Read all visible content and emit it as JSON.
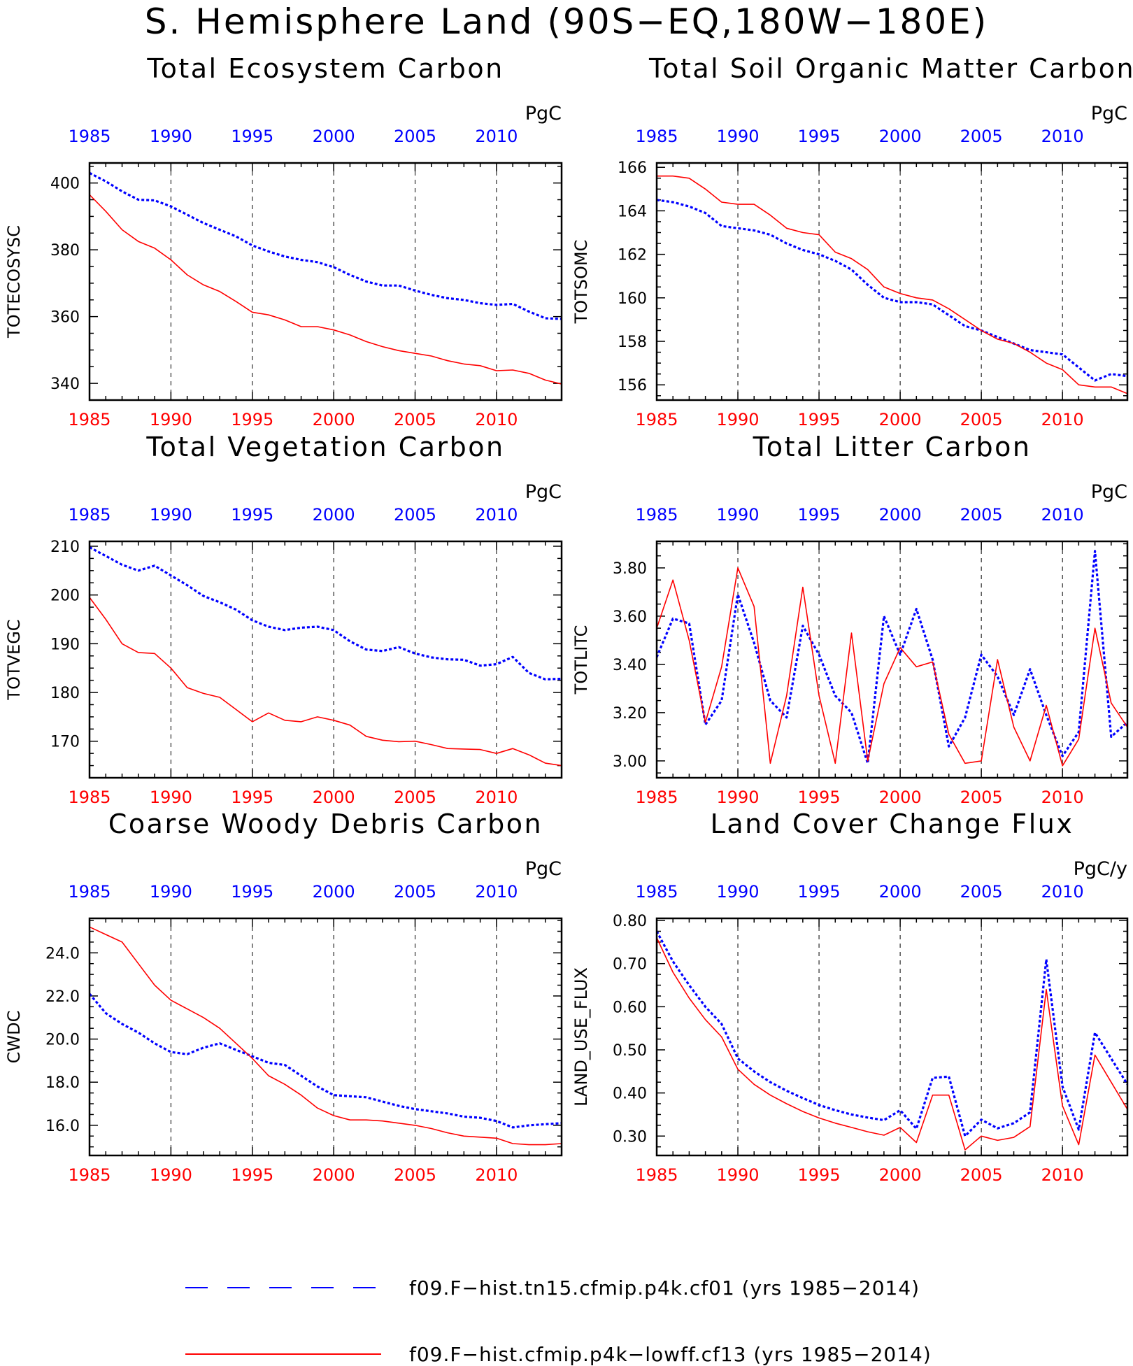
{
  "figure": {
    "title": "S. Hemisphere Land (90S−EQ,180W−180E)"
  },
  "legend": [
    {
      "label": "f09.F−hist.tn15.cfmip.p4k.cf01 (yrs 1985−2014)",
      "color": "#0000ff",
      "style": "dashed"
    },
    {
      "label": "f09.F−hist.cfmip.p4k−lowff.cf13 (yrs 1985−2014)",
      "color": "#ff0000",
      "style": "solid"
    }
  ],
  "colors": {
    "blue_series": "#0000ff",
    "red_series": "#ff0000",
    "top_axis": "#0000ff",
    "bottom_axis": "#ff0000"
  },
  "chart_data": [
    {
      "type": "line",
      "title": "Total Ecosystem Carbon",
      "units": "PgC",
      "ylabel": "TOTECOSYSC",
      "xlim": [
        1985,
        2014
      ],
      "ylim": [
        335,
        406
      ],
      "yticks": [
        340,
        360,
        380,
        400
      ],
      "ytick_labels": [
        "340",
        "360",
        "380",
        "400"
      ],
      "xticks": [
        1985,
        1990,
        1995,
        2000,
        2005,
        2010
      ],
      "x_start": 1985,
      "series": [
        {
          "values": [
            403,
            400.5,
            397.5,
            395,
            394.8,
            393,
            390.5,
            388,
            386,
            384,
            381.3,
            379.5,
            378,
            377,
            376.3,
            374.8,
            372.5,
            370.5,
            369.3,
            369.3,
            367.8,
            366.5,
            365.5,
            365,
            364,
            363.5,
            363.8,
            361.5,
            359.5,
            359.3
          ]
        },
        {
          "values": [
            396.5,
            391.5,
            386,
            382.5,
            380.5,
            377,
            372.5,
            369.5,
            367.5,
            364.5,
            361.3,
            360.5,
            359,
            357,
            357,
            356,
            354.5,
            352.5,
            351,
            349.8,
            349,
            348.2,
            346.8,
            345.8,
            345.3,
            343.8,
            344,
            343,
            341,
            339.8
          ]
        }
      ]
    },
    {
      "type": "line",
      "title": "Total Soil Organic Matter Carbon",
      "units": "PgC",
      "ylabel": "TOTSOMC",
      "xlim": [
        1985,
        2014
      ],
      "ylim": [
        155.3,
        166.2
      ],
      "yticks": [
        156,
        158,
        160,
        162,
        164,
        166
      ],
      "ytick_labels": [
        "156",
        "158",
        "160",
        "162",
        "164",
        "166"
      ],
      "xticks": [
        1985,
        1990,
        1995,
        2000,
        2005,
        2010
      ],
      "x_start": 1985,
      "series": [
        {
          "values": [
            164.5,
            164.4,
            164.2,
            163.9,
            163.3,
            163.2,
            163.1,
            162.9,
            162.5,
            162.2,
            162,
            161.7,
            161.3,
            160.6,
            160,
            159.8,
            159.8,
            159.7,
            159.2,
            158.7,
            158.5,
            158.2,
            157.9,
            157.6,
            157.5,
            157.4,
            156.8,
            156.2,
            156.5,
            156.4
          ]
        },
        {
          "values": [
            165.6,
            165.6,
            165.5,
            165,
            164.4,
            164.3,
            164.3,
            163.8,
            163.2,
            163,
            162.9,
            162.1,
            161.8,
            161.3,
            160.5,
            160.2,
            160,
            159.9,
            159.5,
            159,
            158.5,
            158.1,
            157.9,
            157.5,
            157,
            156.7,
            156,
            155.9,
            155.9,
            155.6
          ]
        }
      ]
    },
    {
      "type": "line",
      "title": "Total Vegetation Carbon",
      "units": "PgC",
      "ylabel": "TOTVEGC",
      "xlim": [
        1985,
        2014
      ],
      "ylim": [
        162.5,
        211
      ],
      "yticks": [
        170,
        180,
        190,
        200,
        210
      ],
      "ytick_labels": [
        "170",
        "180",
        "190",
        "200",
        "210"
      ],
      "xticks": [
        1985,
        1990,
        1995,
        2000,
        2005,
        2010
      ],
      "x_start": 1985,
      "series": [
        {
          "values": [
            209.8,
            208,
            206.2,
            205,
            206,
            204,
            202,
            199.8,
            198.5,
            197,
            194.8,
            193.5,
            192.8,
            193.3,
            193.5,
            192.8,
            190.5,
            188.8,
            188.5,
            189.3,
            188,
            187.2,
            186.8,
            186.7,
            185.5,
            185.8,
            187.3,
            184,
            182.7,
            182.8
          ]
        },
        {
          "values": [
            199.5,
            195,
            190,
            188.2,
            188,
            185,
            181,
            179.8,
            179,
            176.5,
            174,
            175.8,
            174.3,
            174,
            175,
            174.3,
            173.3,
            171,
            170.2,
            169.9,
            170,
            169.3,
            168.5,
            168.4,
            168.3,
            167.5,
            168.5,
            167.2,
            165.5,
            165
          ]
        }
      ]
    },
    {
      "type": "line",
      "title": "Total Litter Carbon",
      "units": "PgC",
      "ylabel": "TOTLITC",
      "xlim": [
        1985,
        2014
      ],
      "ylim": [
        2.93,
        3.91
      ],
      "yticks": [
        3.0,
        3.2,
        3.4,
        3.6,
        3.8
      ],
      "ytick_labels": [
        "3.00",
        "3.20",
        "3.40",
        "3.60",
        "3.80"
      ],
      "xticks": [
        1985,
        1990,
        1995,
        2000,
        2005,
        2010
      ],
      "x_start": 1985,
      "series": [
        {
          "values": [
            3.43,
            3.59,
            3.57,
            3.15,
            3.25,
            3.69,
            3.49,
            3.25,
            3.18,
            3.56,
            3.44,
            3.27,
            3.2,
            2.99,
            3.6,
            3.44,
            3.63,
            3.42,
            3.06,
            3.18,
            3.44,
            3.35,
            3.19,
            3.38,
            3.19,
            3.02,
            3.12,
            3.87,
            3.1,
            3.16
          ]
        },
        {
          "values": [
            3.55,
            3.75,
            3.5,
            3.16,
            3.39,
            3.8,
            3.64,
            2.99,
            3.27,
            3.72,
            3.27,
            2.99,
            3.53,
            3.0,
            3.32,
            3.47,
            3.39,
            3.41,
            3.11,
            2.99,
            3.0,
            3.42,
            3.14,
            3.0,
            3.23,
            2.98,
            3.09,
            3.55,
            3.24,
            3.14
          ]
        }
      ]
    },
    {
      "type": "line",
      "title": "Coarse Woody Debris Carbon",
      "units": "PgC",
      "ylabel": "CWDC",
      "xlim": [
        1985,
        2014
      ],
      "ylim": [
        14.6,
        25.6
      ],
      "yticks": [
        16,
        18,
        20,
        22,
        24
      ],
      "ytick_labels": [
        "16.0",
        "18.0",
        "20.0",
        "22.0",
        "24.0"
      ],
      "xticks": [
        1985,
        1990,
        1995,
        2000,
        2005,
        2010
      ],
      "x_start": 1985,
      "series": [
        {
          "values": [
            22.1,
            21.2,
            20.7,
            20.3,
            19.8,
            19.4,
            19.3,
            19.6,
            19.8,
            19.5,
            19.2,
            18.9,
            18.8,
            18.3,
            17.8,
            17.4,
            17.35,
            17.3,
            17.1,
            16.9,
            16.75,
            16.65,
            16.55,
            16.4,
            16.35,
            16.2,
            15.9,
            16.0,
            16.05,
            16.1
          ]
        },
        {
          "values": [
            25.2,
            24.85,
            24.5,
            23.5,
            22.5,
            21.8,
            21.4,
            21.0,
            20.5,
            19.8,
            19.1,
            18.3,
            17.9,
            17.4,
            16.8,
            16.45,
            16.25,
            16.25,
            16.2,
            16.1,
            16.0,
            15.85,
            15.65,
            15.5,
            15.45,
            15.4,
            15.15,
            15.1,
            15.1,
            15.15
          ]
        }
      ]
    },
    {
      "type": "line",
      "title": "Land Cover Change Flux",
      "units": "PgC/y",
      "ylabel": "LAND_USE_FLUX",
      "xlim": [
        1985,
        2014
      ],
      "ylim": [
        0.255,
        0.805
      ],
      "yticks": [
        0.3,
        0.4,
        0.5,
        0.6,
        0.7,
        0.8
      ],
      "ytick_labels": [
        "0.30",
        "0.40",
        "0.50",
        "0.60",
        "0.70",
        "0.80"
      ],
      "xticks": [
        1985,
        1990,
        1995,
        2000,
        2005,
        2010
      ],
      "x_start": 1985,
      "series": [
        {
          "values": [
            0.775,
            0.705,
            0.65,
            0.6,
            0.56,
            0.48,
            0.45,
            0.425,
            0.405,
            0.388,
            0.372,
            0.36,
            0.35,
            0.343,
            0.337,
            0.36,
            0.317,
            0.435,
            0.438,
            0.3,
            0.338,
            0.318,
            0.33,
            0.355,
            0.71,
            0.415,
            0.315,
            0.54,
            0.48,
            0.42
          ]
        },
        {
          "values": [
            0.76,
            0.68,
            0.62,
            0.57,
            0.53,
            0.455,
            0.42,
            0.395,
            0.375,
            0.357,
            0.342,
            0.33,
            0.32,
            0.31,
            0.302,
            0.32,
            0.285,
            0.395,
            0.395,
            0.268,
            0.3,
            0.29,
            0.297,
            0.322,
            0.64,
            0.37,
            0.28,
            0.488,
            0.425,
            0.362
          ]
        }
      ]
    }
  ]
}
